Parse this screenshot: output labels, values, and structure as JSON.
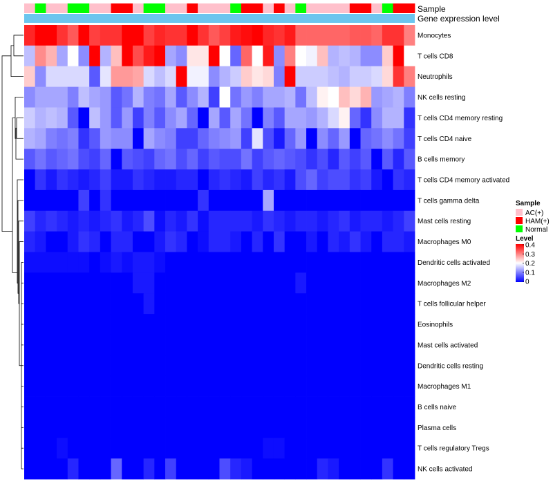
{
  "chart_data": {
    "type": "heatmap",
    "annotation_tracks": {
      "sample": {
        "label": "Sample",
        "values": [
          "AC(+)",
          "Normal",
          "AC(+)",
          "AC(+)",
          "Normal",
          "Normal",
          "AC(+)",
          "AC(+)",
          "HAM(+)",
          "HAM(+)",
          "AC(+)",
          "Normal",
          "Normal",
          "AC(+)",
          "AC(+)",
          "HAM(+)",
          "AC(+)",
          "AC(+)",
          "AC(+)",
          "Normal",
          "HAM(+)",
          "HAM(+)",
          "AC(+)",
          "HAM(+)",
          "AC(+)",
          "Normal",
          "AC(+)",
          "AC(+)",
          "AC(+)",
          "AC(+)",
          "HAM(+)",
          "HAM(+)",
          "AC(+)",
          "Normal",
          "HAM(+)",
          "HAM(+)"
        ]
      },
      "gene_expression": {
        "label": "Gene expression level",
        "color": "#6cc5ee"
      }
    },
    "rows": [
      "Monocytes",
      "T cells CD8",
      "Neutrophils",
      "NK cells resting",
      "T cells CD4 memory resting",
      "T cells CD4 naive",
      "B cells memory",
      "T cells CD4 memory activated",
      "T cells gamma delta",
      "Mast cells resting",
      "Macrophages M0",
      "Dendritic cells activated",
      "Macrophages M2",
      "T cells follicular helper",
      "Eosinophils",
      "Mast cells activated",
      "Dendritic cells resting",
      "Macrophages M1",
      "B cells naive",
      "Plasma cells",
      "T cells regulatory  Tregs",
      "NK cells activated"
    ],
    "values": [
      [
        0.37,
        0.4,
        0.4,
        0.36,
        0.33,
        0.4,
        0.35,
        0.36,
        0.36,
        0.4,
        0.4,
        0.35,
        0.37,
        0.36,
        0.36,
        0.4,
        0.36,
        0.33,
        0.35,
        0.38,
        0.39,
        0.4,
        0.37,
        0.36,
        0.38,
        0.32,
        0.32,
        0.32,
        0.32,
        0.32,
        0.33,
        0.33,
        0.32,
        0.36,
        0.36,
        0.3
      ],
      [
        0.15,
        0.29,
        0.26,
        0.13,
        0.2,
        0.11,
        0.4,
        0.14,
        0.25,
        0.4,
        0.34,
        0.38,
        0.4,
        0.13,
        0.11,
        0.22,
        0.22,
        0.4,
        0.2,
        0.08,
        0.32,
        0.2,
        0.38,
        0.11,
        0.3,
        0.2,
        0.19,
        0.25,
        0.14,
        0.15,
        0.14,
        0.11,
        0.11,
        0.24,
        0.4,
        0.2
      ],
      [
        0.24,
        0.11,
        0.17,
        0.17,
        0.17,
        0.17,
        0.07,
        0.18,
        0.28,
        0.28,
        0.27,
        0.17,
        0.15,
        0.17,
        0.4,
        0.19,
        0.19,
        0.11,
        0.14,
        0.16,
        0.24,
        0.22,
        0.23,
        0.1,
        0.4,
        0.16,
        0.16,
        0.16,
        0.15,
        0.14,
        0.16,
        0.16,
        0.17,
        0.23,
        0.36,
        0.3
      ],
      [
        0.11,
        0.13,
        0.13,
        0.13,
        0.1,
        0.15,
        0.13,
        0.12,
        0.07,
        0.09,
        0.14,
        0.1,
        0.09,
        0.13,
        0.07,
        0.11,
        0.14,
        0.05,
        0.2,
        0.09,
        0.12,
        0.1,
        0.13,
        0.13,
        0.14,
        0.09,
        0.15,
        0.21,
        0.2,
        0.25,
        0.23,
        0.26,
        0.12,
        0.13,
        0.14,
        0.1
      ],
      [
        0.16,
        0.14,
        0.15,
        0.14,
        0.07,
        0.0,
        0.15,
        0.12,
        0.07,
        0.12,
        0.05,
        0.1,
        0.07,
        0.11,
        0.13,
        0.08,
        0.0,
        0.13,
        0.07,
        0.13,
        0.09,
        0.0,
        0.1,
        0.07,
        0.13,
        0.13,
        0.12,
        0.14,
        0.17,
        0.21,
        0.08,
        0.04,
        0.11,
        0.14,
        0.14,
        0.04
      ],
      [
        0.14,
        0.13,
        0.1,
        0.09,
        0.1,
        0.04,
        0.07,
        0.12,
        0.11,
        0.11,
        0.0,
        0.13,
        0.11,
        0.1,
        0.05,
        0.05,
        0.08,
        0.1,
        0.11,
        0.12,
        0.05,
        0.18,
        0.06,
        0.02,
        0.08,
        0.12,
        0.0,
        0.11,
        0.08,
        0.12,
        0.0,
        0.08,
        0.09,
        0.11,
        0.09,
        0.05
      ],
      [
        0.07,
        0.09,
        0.07,
        0.08,
        0.09,
        0.06,
        0.05,
        0.08,
        0.0,
        0.07,
        0.06,
        0.05,
        0.08,
        0.09,
        0.06,
        0.08,
        0.05,
        0.07,
        0.06,
        0.06,
        0.09,
        0.05,
        0.07,
        0.08,
        0.07,
        0.06,
        0.04,
        0.06,
        0.03,
        0.07,
        0.05,
        0.07,
        0.0,
        0.07,
        0.03,
        0.07
      ],
      [
        0.0,
        0.04,
        0.02,
        0.04,
        0.03,
        0.02,
        0.03,
        0.05,
        0.02,
        0.02,
        0.04,
        0.03,
        0.02,
        0.02,
        0.03,
        0.03,
        0.0,
        0.03,
        0.04,
        0.03,
        0.02,
        0.05,
        0.03,
        0.04,
        0.02,
        0.06,
        0.08,
        0.05,
        0.06,
        0.06,
        0.04,
        0.05,
        0.02,
        0.0,
        0.04,
        0.03
      ],
      [
        0.0,
        0.0,
        0.0,
        0.0,
        0.0,
        0.05,
        0.0,
        0.04,
        0.0,
        0.0,
        0.0,
        0.0,
        0.0,
        0.0,
        0.0,
        0.0,
        0.04,
        0.0,
        0.0,
        0.0,
        0.0,
        0.0,
        0.13,
        0.0,
        0.0,
        0.0,
        0.0,
        0.0,
        0.0,
        0.0,
        0.0,
        0.0,
        0.0,
        0.0,
        0.0,
        0.0
      ],
      [
        0.05,
        0.03,
        0.04,
        0.03,
        0.02,
        0.03,
        0.02,
        0.03,
        0.04,
        0.02,
        0.03,
        0.06,
        0.01,
        0.03,
        0.02,
        0.04,
        0.01,
        0.03,
        0.03,
        0.03,
        0.03,
        0.02,
        0.04,
        0.03,
        0.02,
        0.03,
        0.03,
        0.02,
        0.03,
        0.04,
        0.02,
        0.03,
        0.03,
        0.02,
        0.03,
        0.05
      ],
      [
        0.03,
        0.02,
        0.0,
        0.0,
        0.02,
        0.04,
        0.03,
        0.0,
        0.03,
        0.03,
        0.0,
        0.0,
        0.02,
        0.04,
        0.03,
        0.0,
        0.01,
        0.03,
        0.03,
        0.02,
        0.0,
        0.03,
        0.0,
        0.04,
        0.0,
        0.0,
        0.02,
        0.0,
        0.03,
        0.02,
        0.04,
        0.02,
        0.0,
        0.03,
        0.03,
        0.02
      ],
      [
        0.01,
        0.01,
        0.01,
        0.01,
        0.01,
        0.01,
        0.0,
        0.01,
        0.02,
        0.01,
        0.02,
        0.02,
        0.01,
        0.0,
        0.0,
        0.0,
        0.0,
        0.0,
        0.0,
        0.0,
        0.0,
        0.0,
        0.0,
        0.0,
        0.0,
        0.0,
        0.0,
        0.0,
        0.0,
        0.0,
        0.0,
        0.0,
        0.0,
        0.0,
        0.0,
        0.0
      ],
      [
        0.0,
        0.0,
        0.0,
        0.0,
        0.0,
        0.0,
        0.0,
        0.0,
        0.0,
        0.0,
        0.02,
        0.02,
        0.0,
        0.0,
        0.0,
        0.0,
        0.0,
        0.0,
        0.0,
        0.0,
        0.0,
        0.0,
        0.0,
        0.0,
        0.0,
        0.02,
        0.0,
        0.0,
        0.0,
        0.0,
        0.0,
        0.0,
        0.0,
        0.0,
        0.0,
        0.0
      ],
      [
        0.0,
        0.0,
        0.0,
        0.0,
        0.0,
        0.0,
        0.0,
        0.0,
        0.0,
        0.0,
        0.0,
        0.02,
        0.0,
        0.0,
        0.0,
        0.0,
        0.0,
        0.0,
        0.0,
        0.0,
        0.0,
        0.0,
        0.0,
        0.0,
        0.0,
        0.0,
        0.0,
        0.0,
        0.0,
        0.0,
        0.0,
        0.0,
        0.0,
        0.0,
        0.0,
        0.0
      ],
      [
        0.0,
        0.0,
        0.0,
        0.0,
        0.0,
        0.0,
        0.0,
        0.0,
        0.0,
        0.0,
        0.0,
        0.0,
        0.0,
        0.0,
        0.0,
        0.0,
        0.0,
        0.0,
        0.0,
        0.0,
        0.0,
        0.0,
        0.0,
        0.0,
        0.0,
        0.0,
        0.0,
        0.0,
        0.0,
        0.0,
        0.0,
        0.0,
        0.0,
        0.0,
        0.0,
        0.0
      ],
      [
        0.0,
        0.0,
        0.0,
        0.0,
        0.0,
        0.0,
        0.0,
        0.0,
        0.0,
        0.0,
        0.0,
        0.0,
        0.0,
        0.0,
        0.0,
        0.0,
        0.0,
        0.0,
        0.0,
        0.0,
        0.0,
        0.0,
        0.0,
        0.0,
        0.0,
        0.0,
        0.0,
        0.0,
        0.0,
        0.0,
        0.0,
        0.0,
        0.0,
        0.0,
        0.0,
        0.0
      ],
      [
        0.0,
        0.0,
        0.0,
        0.0,
        0.0,
        0.0,
        0.0,
        0.0,
        0.0,
        0.0,
        0.0,
        0.0,
        0.0,
        0.0,
        0.0,
        0.0,
        0.0,
        0.0,
        0.0,
        0.0,
        0.0,
        0.0,
        0.0,
        0.0,
        0.0,
        0.0,
        0.0,
        0.0,
        0.0,
        0.0,
        0.0,
        0.0,
        0.0,
        0.0,
        0.0,
        0.0
      ],
      [
        0.0,
        0.0,
        0.0,
        0.0,
        0.0,
        0.0,
        0.0,
        0.0,
        0.0,
        0.0,
        0.0,
        0.0,
        0.0,
        0.0,
        0.0,
        0.0,
        0.0,
        0.0,
        0.0,
        0.0,
        0.0,
        0.0,
        0.0,
        0.0,
        0.0,
        0.0,
        0.0,
        0.0,
        0.0,
        0.0,
        0.0,
        0.0,
        0.0,
        0.0,
        0.0,
        0.0
      ],
      [
        0.0,
        0.0,
        0.0,
        0.0,
        0.0,
        0.0,
        0.0,
        0.0,
        0.0,
        0.0,
        0.0,
        0.0,
        0.0,
        0.0,
        0.0,
        0.0,
        0.0,
        0.0,
        0.0,
        0.0,
        0.0,
        0.0,
        0.0,
        0.0,
        0.0,
        0.0,
        0.0,
        0.0,
        0.0,
        0.0,
        0.0,
        0.0,
        0.0,
        0.0,
        0.0,
        0.0
      ],
      [
        0.0,
        0.0,
        0.0,
        0.0,
        0.0,
        0.0,
        0.0,
        0.0,
        0.0,
        0.0,
        0.0,
        0.0,
        0.0,
        0.0,
        0.0,
        0.0,
        0.0,
        0.0,
        0.0,
        0.0,
        0.0,
        0.0,
        0.0,
        0.0,
        0.0,
        0.0,
        0.0,
        0.0,
        0.0,
        0.0,
        0.0,
        0.0,
        0.0,
        0.0,
        0.0,
        0.0
      ],
      [
        0.0,
        0.0,
        0.0,
        0.01,
        0.0,
        0.0,
        0.0,
        0.0,
        0.0,
        0.0,
        0.0,
        0.0,
        0.0,
        0.0,
        0.0,
        0.0,
        0.0,
        0.0,
        0.0,
        0.0,
        0.0,
        0.0,
        0.01,
        0.01,
        0.0,
        0.0,
        0.0,
        0.0,
        0.0,
        0.0,
        0.0,
        0.0,
        0.0,
        0.0,
        0.0,
        0.0
      ],
      [
        0.0,
        0.0,
        0.0,
        0.0,
        0.03,
        0.0,
        0.0,
        0.0,
        0.08,
        0.0,
        0.0,
        0.03,
        0.0,
        0.05,
        0.0,
        0.0,
        0.0,
        0.0,
        0.06,
        0.03,
        0.02,
        0.0,
        0.0,
        0.0,
        0.0,
        0.0,
        0.0,
        0.03,
        0.02,
        0.0,
        0.0,
        0.0,
        0.0,
        0.04,
        0.0,
        0.0
      ]
    ],
    "colorscale": {
      "low": "#0000ff",
      "mid": "#ffffff",
      "high": "#ff0000",
      "min": 0,
      "mid_value": 0.2,
      "max": 0.4
    },
    "sample_colors": {
      "AC(+)": "#ffc0cb",
      "HAM(+)": "#ff0000",
      "Normal": "#00ff00"
    },
    "legend": {
      "sample_title": "Sample",
      "sample_entries": [
        "AC(+)",
        "HAM(+)",
        "Normal"
      ],
      "level_title": "Level",
      "level_ticks": [
        "0.4",
        "0.3",
        "0.2",
        "0.1",
        "0"
      ],
      "placement": "right"
    }
  }
}
